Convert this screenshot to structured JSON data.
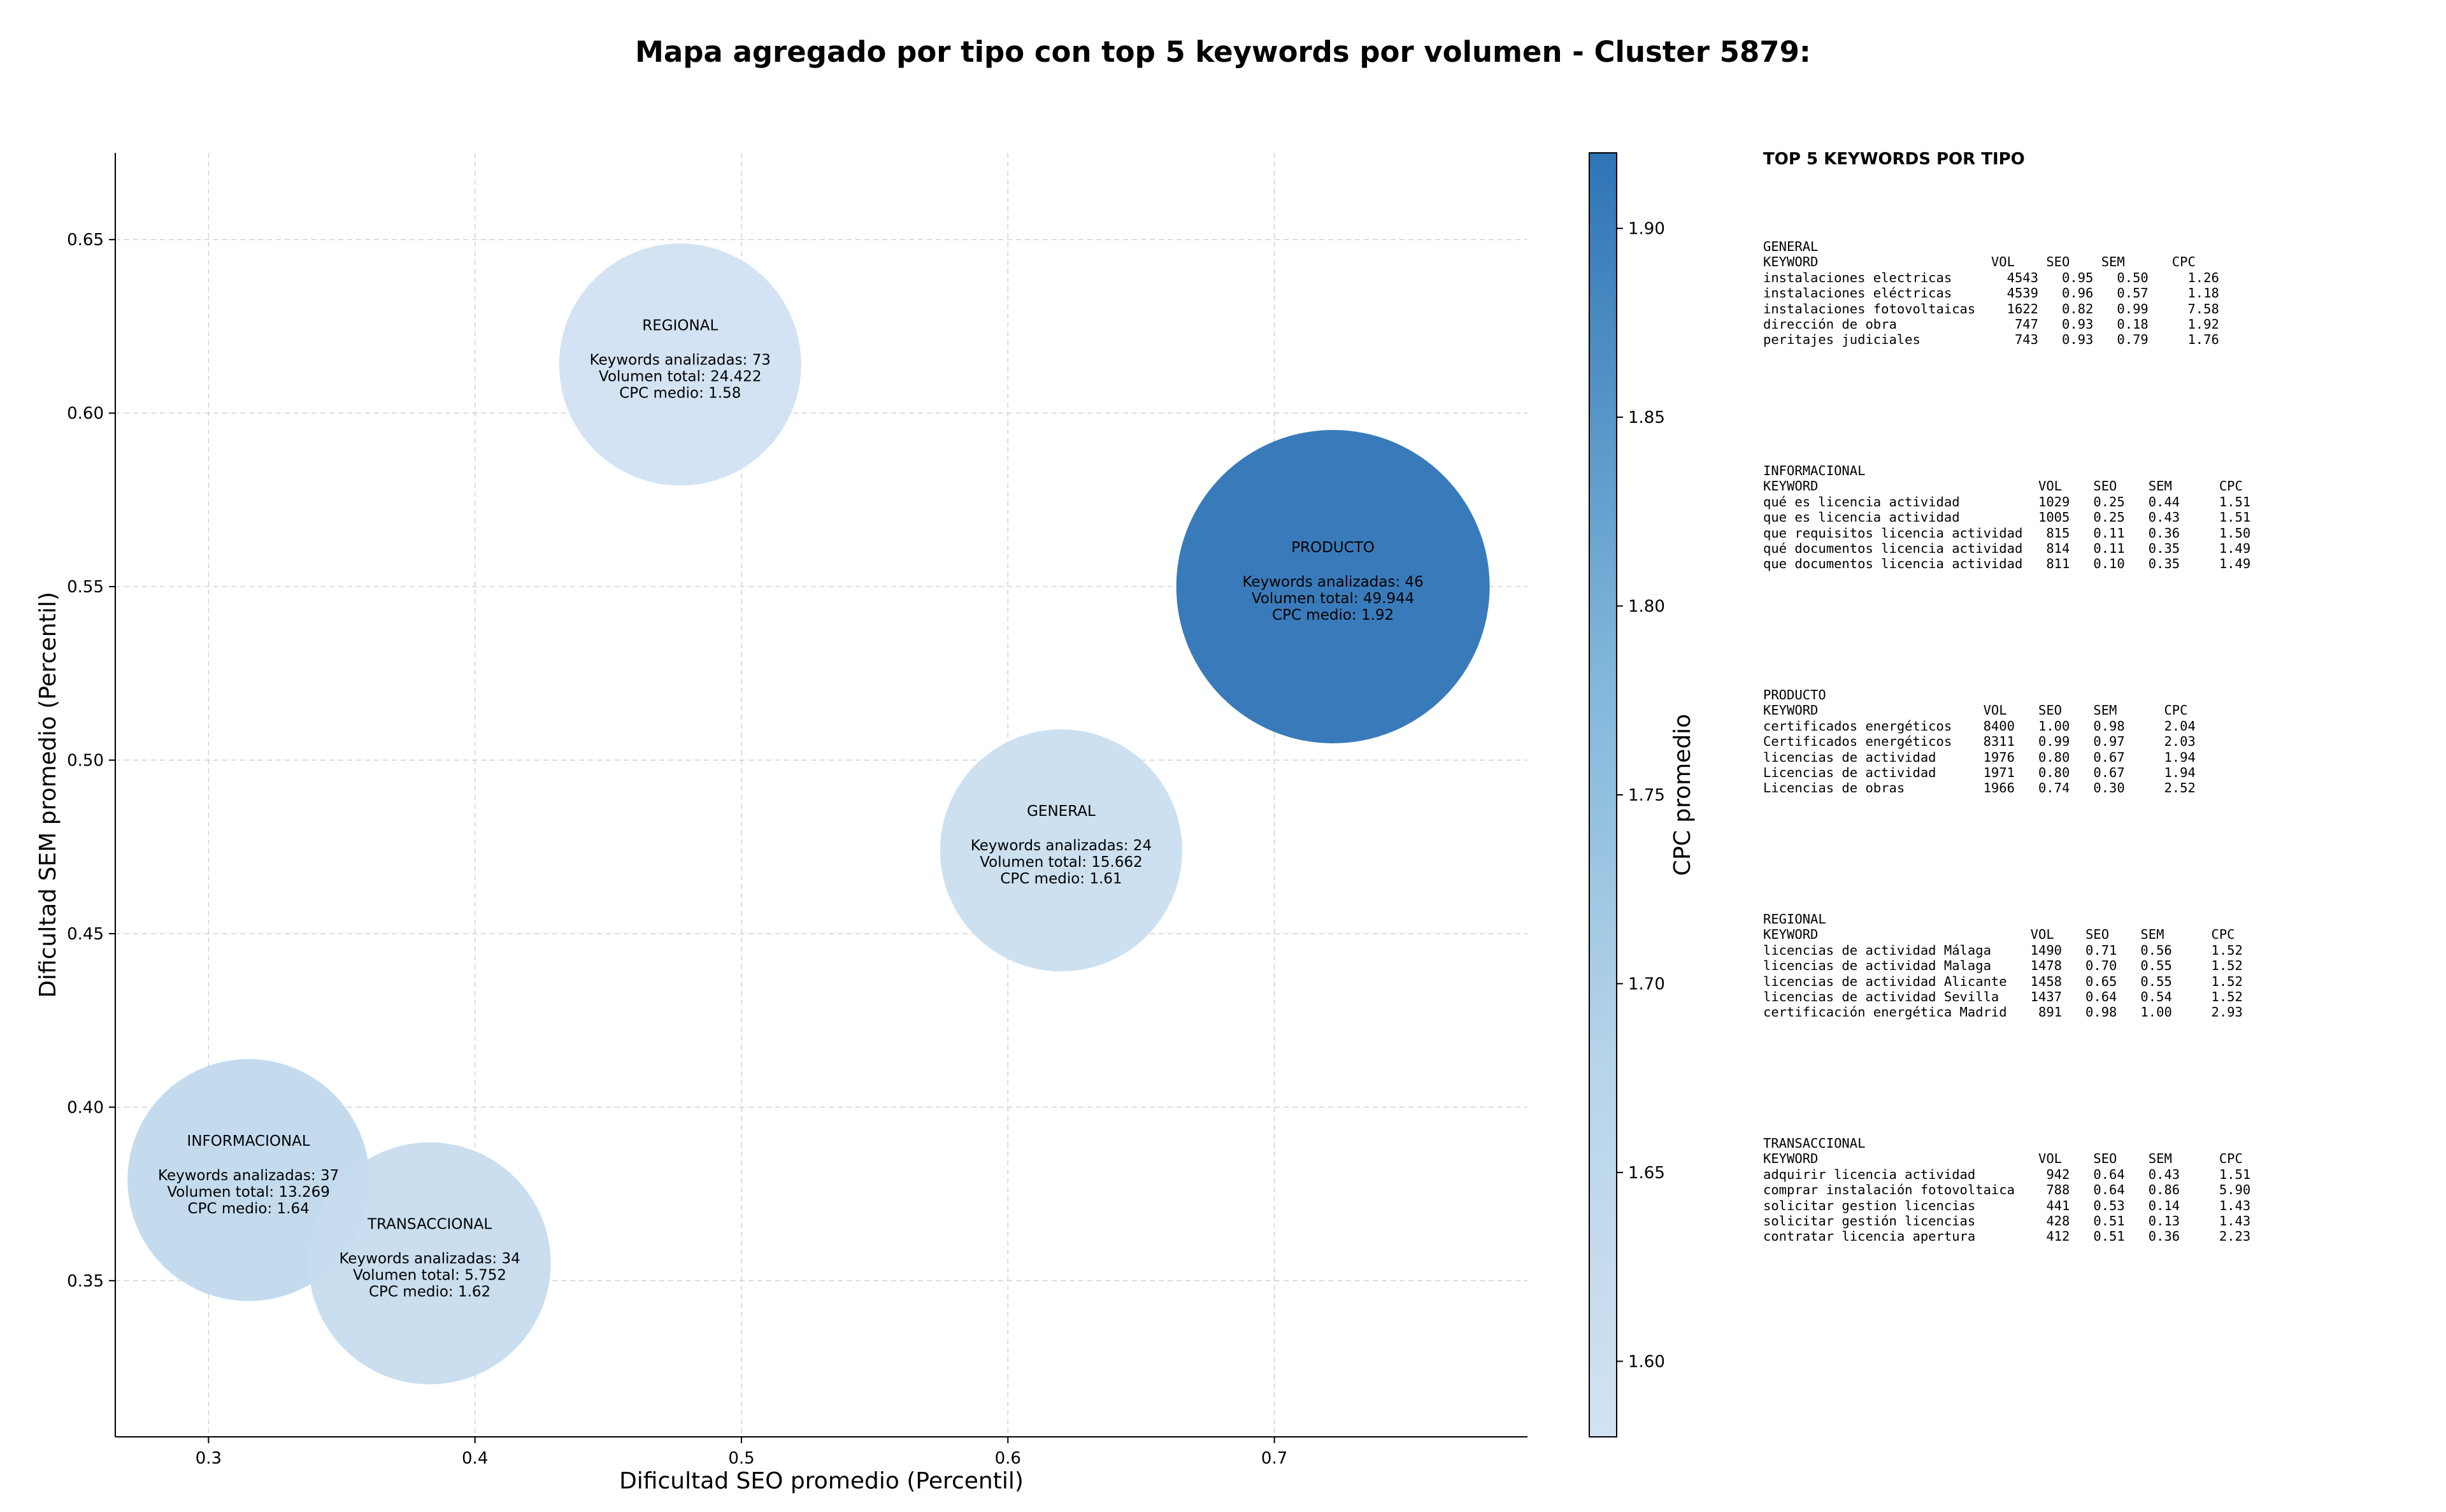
{
  "title": "Mapa agregado por tipo con top 5 keywords por volumen - Cluster 5879:",
  "chart_data": {
    "type": "scatter",
    "xlabel": "Dificultad SEO promedio (Percentil)",
    "ylabel": "Dificultad SEM promedio (Percentil)",
    "xlim": [
      0.265,
      0.795
    ],
    "ylim": [
      0.305,
      0.675
    ],
    "xticks": [
      0.3,
      0.4,
      0.5,
      0.6,
      0.7
    ],
    "yticks": [
      0.35,
      0.4,
      0.45,
      0.5,
      0.55,
      0.6,
      0.65
    ],
    "grid": true,
    "colorbar": {
      "label": "CPC promedio",
      "min": 1.58,
      "max": 1.92,
      "ticks": [
        1.6,
        1.65,
        1.7,
        1.75,
        1.8,
        1.85,
        1.9
      ]
    },
    "bubble_size_measure": "Volumen total",
    "points": [
      {
        "name": "REGIONAL",
        "x": 0.477,
        "y": 0.614,
        "keywords": "Keywords analizadas: 73",
        "volumen": "Volumen total: 24.422",
        "cpc_text": "CPC medio: 1.58",
        "volume_value": 24422,
        "cpc": 1.58
      },
      {
        "name": "PRODUCTO",
        "x": 0.722,
        "y": 0.55,
        "keywords": "Keywords analizadas: 46",
        "volumen": "Volumen total: 49.944",
        "cpc_text": "CPC medio: 1.92",
        "volume_value": 49944,
        "cpc": 1.92
      },
      {
        "name": "GENERAL",
        "x": 0.62,
        "y": 0.474,
        "keywords": "Keywords analizadas: 24",
        "volumen": "Volumen total: 15.662",
        "cpc_text": "CPC medio: 1.61",
        "volume_value": 15662,
        "cpc": 1.61
      },
      {
        "name": "INFORMACIONAL",
        "x": 0.315,
        "y": 0.379,
        "keywords": "Keywords analizadas: 37",
        "volumen": "Volumen total: 13.269",
        "cpc_text": "CPC medio: 1.64",
        "volume_value": 13269,
        "cpc": 1.64
      },
      {
        "name": "TRANSACCIONAL",
        "x": 0.383,
        "y": 0.355,
        "keywords": "Keywords analizadas: 34",
        "volumen": "Volumen total: 5.752",
        "cpc_text": "CPC medio: 1.62",
        "volume_value": 5752,
        "cpc": 1.62
      }
    ]
  },
  "side_panel": {
    "title": "TOP 5 KEYWORDS POR TIPO",
    "blocks": [
      {
        "text": "GENERAL\nKEYWORD                      VOL    SEO    SEM      CPC\ninstalaciones electricas       4543   0.95   0.50     1.26\ninstalaciones eléctricas       4539   0.96   0.57     1.18\ninstalaciones fotovoltaicas    1622   0.82   0.99     7.58\ndirección de obra               747   0.93   0.18     1.92\nperitajes judiciales            743   0.93   0.79     1.76"
      },
      {
        "text": "INFORMACIONAL\nKEYWORD                            VOL    SEO    SEM      CPC\nqué es licencia actividad          1029   0.25   0.44     1.51\nque es licencia actividad          1005   0.25   0.43     1.51\nque requisitos licencia actividad   815   0.11   0.36     1.50\nqué documentos licencia actividad   814   0.11   0.35     1.49\nque documentos licencia actividad   811   0.10   0.35     1.49"
      },
      {
        "text": "PRODUCTO\nKEYWORD                     VOL    SEO    SEM      CPC\ncertificados energéticos    8400   1.00   0.98     2.04\nCertificados energéticos    8311   0.99   0.97     2.03\nlicencias de actividad      1976   0.80   0.67     1.94\nLicencias de actividad      1971   0.80   0.67     1.94\nLicencias de obras          1966   0.74   0.30     2.52"
      },
      {
        "text": "REGIONAL\nKEYWORD                           VOL    SEO    SEM      CPC\nlicencias de actividad Málaga     1490   0.71   0.56     1.52\nlicencias de actividad Malaga     1478   0.70   0.55     1.52\nlicencias de actividad Alicante   1458   0.65   0.55     1.52\nlicencias de actividad Sevilla    1437   0.64   0.54     1.52\ncertificación energética Madrid    891   0.98   1.00     2.93"
      },
      {
        "text": "TRANSACCIONAL\nKEYWORD                            VOL    SEO    SEM      CPC\nadquirir licencia actividad         942   0.64   0.43     1.51\ncomprar instalación fotovoltaica    788   0.64   0.86     5.90\nsolicitar gestion licencias         441   0.53   0.14     1.43\nsolicitar gestión licencias         428   0.51   0.13     1.43\ncontratar licencia apertura         412   0.51   0.36     2.23"
      }
    ]
  }
}
